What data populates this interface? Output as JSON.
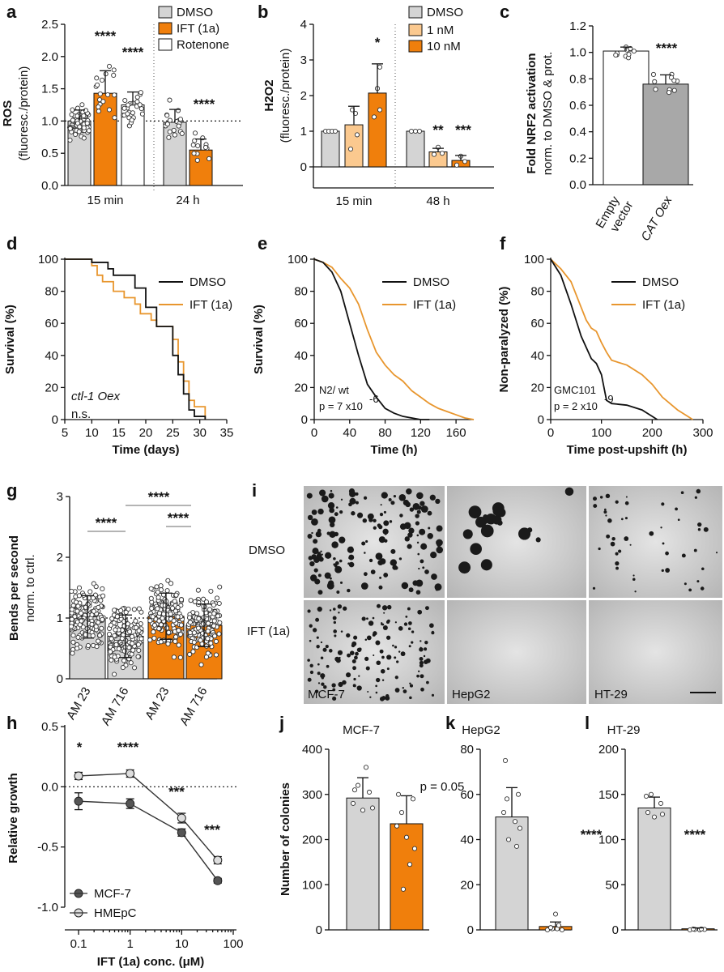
{
  "colors": {
    "grey": "#d4d4d4",
    "dark_grey": "#a8a8a8",
    "orange": "#f07f0c",
    "light_orange": "#fbc98f",
    "line_orange": "#e8962e",
    "black": "#000000"
  },
  "panels": {
    "a": {
      "label": "a",
      "ylabel": "ROS",
      "ylabel2": "(fluoresc./protein)",
      "legend": [
        "DMSO",
        "IFT (1a)",
        "Rotenone"
      ],
      "group_labels": [
        "15 min",
        "24 h"
      ],
      "yticks": [
        "0.0",
        "0.5",
        "1.0",
        "1.5",
        "2.0",
        "2.5"
      ],
      "sig": [
        "****",
        "****",
        "****"
      ]
    },
    "b": {
      "label": "b",
      "ylabel": "H2O2",
      "ylabel2": "(fluoresc./protein)",
      "legend": [
        "DMSO",
        "1 nM",
        "10 nM"
      ],
      "group_labels": [
        "15 min",
        "48 h"
      ],
      "yticks": [
        "0",
        "1",
        "2",
        "3",
        "4"
      ],
      "sig": [
        "*",
        "**",
        "***"
      ]
    },
    "c": {
      "label": "c",
      "ylabel": "Fold NRF2 activation",
      "ylabel2": "norm. to DMSO & prot.",
      "categories": [
        "Empty vector",
        "CAT Oex"
      ],
      "yticks": [
        "0.0",
        "0.2",
        "0.4",
        "0.6",
        "0.8",
        "1.0",
        "1.2"
      ],
      "sig": "****"
    },
    "d": {
      "label": "d",
      "ylabel": "Survival (%)",
      "xlabel": "Time (days)",
      "legend": [
        "DMSO",
        "IFT (1a)"
      ],
      "annotation": "ctl-1 Oex",
      "annotation2": "n.s.",
      "xticks": [
        "5",
        "10",
        "15",
        "20",
        "25",
        "30",
        "35"
      ],
      "yticks": [
        "0",
        "20",
        "40",
        "60",
        "80",
        "100"
      ]
    },
    "e": {
      "label": "e",
      "ylabel": "Survival (%)",
      "xlabel": "Time (h)",
      "legend": [
        "DMSO",
        "IFT (1a)"
      ],
      "annotation": "N2/ wt",
      "annotation2": "p = 7 x10",
      "annotation2_exp": "-6",
      "xticks": [
        "0",
        "40",
        "80",
        "120",
        "160"
      ],
      "yticks": [
        "0",
        "20",
        "40",
        "60",
        "80",
        "100"
      ]
    },
    "f": {
      "label": "f",
      "ylabel": "Non-paralyzed (%)",
      "xlabel": "Time post-upshift (h)",
      "legend": [
        "DMSO",
        "IFT (1a)"
      ],
      "annotation": "GMC101",
      "annotation2": "p = 2 x10",
      "annotation2_exp": "-9",
      "xticks": [
        "0",
        "100",
        "200",
        "300"
      ],
      "yticks": [
        "0",
        "20",
        "40",
        "60",
        "80",
        "100"
      ]
    },
    "g": {
      "label": "g",
      "ylabel": "Bends per second",
      "ylabel2": "norm. to ctrl.",
      "categories": [
        "AM 23",
        "AM 716",
        "AM 23",
        "AM 716"
      ],
      "yticks": [
        "0",
        "1",
        "2",
        "3"
      ],
      "sig": [
        "****",
        "****",
        "****"
      ]
    },
    "i": {
      "label": "i",
      "row_labels": [
        "DMSO",
        "IFT (1a)"
      ],
      "col_labels": [
        "MCF-7",
        "HepG2",
        "HT-29"
      ]
    },
    "h": {
      "label": "h",
      "ylabel": "Relative growth",
      "xlabel": "IFT (1a) conc. (μM)",
      "legend": [
        "MCF-7",
        "HMEpC"
      ],
      "xticks": [
        "0.1",
        "1",
        "10",
        "100"
      ],
      "yticks": [
        "0.5",
        "0.0",
        "-0.5",
        "-1.0"
      ],
      "sig": [
        "*",
        "****",
        "***",
        "***"
      ]
    },
    "j": {
      "label": "j",
      "title": "MCF-7",
      "ylabel": "Number of colonies",
      "annotation": "p = 0.05",
      "yticks": [
        "0",
        "100",
        "200",
        "300",
        "400"
      ]
    },
    "k": {
      "label": "k",
      "title": "HepG2",
      "sig": "****",
      "yticks": [
        "0",
        "20",
        "40",
        "60",
        "80"
      ]
    },
    "l": {
      "label": "l",
      "title": "HT-29",
      "sig": "****",
      "yticks": [
        "0",
        "50",
        "100",
        "150",
        "200"
      ]
    }
  },
  "chart_data": [
    {
      "panel": "a",
      "type": "bar",
      "ylim": [
        0,
        2.5
      ],
      "series": [
        {
          "name": "DMSO",
          "group": "15 min",
          "mean": 1.0,
          "sd": 0.17
        },
        {
          "name": "IFT (1a)",
          "group": "15 min",
          "mean": 1.43,
          "sd": 0.35
        },
        {
          "name": "Rotenone",
          "group": "15 min",
          "mean": 1.25,
          "sd": 0.2
        },
        {
          "name": "DMSO",
          "group": "24 h",
          "mean": 0.98,
          "sd": 0.2
        },
        {
          "name": "IFT (1a)",
          "group": "24 h",
          "mean": 0.55,
          "sd": 0.17
        }
      ]
    },
    {
      "panel": "b",
      "type": "bar",
      "ylim": [
        0,
        4
      ],
      "series": [
        {
          "name": "DMSO",
          "group": "15 min",
          "mean": 1.0,
          "sd": 0.0
        },
        {
          "name": "1 nM",
          "group": "15 min",
          "mean": 1.18,
          "sd": 0.52
        },
        {
          "name": "10 nM",
          "group": "15 min",
          "mean": 2.07,
          "sd": 0.82
        },
        {
          "name": "DMSO",
          "group": "48 h",
          "mean": 1.0,
          "sd": 0.0
        },
        {
          "name": "1 nM",
          "group": "48 h",
          "mean": 0.42,
          "sd": 0.1
        },
        {
          "name": "10 nM",
          "group": "48 h",
          "mean": 0.18,
          "sd": 0.14
        }
      ]
    },
    {
      "panel": "c",
      "type": "bar",
      "ylim": [
        0,
        1.2
      ],
      "categories": [
        "Empty vector",
        "CAT Oex"
      ],
      "values": [
        1.01,
        0.76
      ],
      "sd": [
        0.03,
        0.07
      ]
    },
    {
      "panel": "d",
      "type": "line",
      "xlim": [
        5,
        35
      ],
      "ylim": [
        0,
        100
      ],
      "series": [
        {
          "name": "DMSO",
          "x": [
            5,
            8,
            10,
            11,
            12,
            13,
            14,
            16,
            18,
            19,
            20,
            21,
            22,
            24,
            25,
            26,
            27,
            28,
            29,
            30,
            31
          ],
          "y": [
            100,
            100,
            98,
            98,
            98,
            94,
            90,
            90,
            82,
            82,
            70,
            70,
            58,
            58,
            40,
            28,
            16,
            6,
            2,
            2,
            0
          ]
        },
        {
          "name": "IFT (1a)",
          "x": [
            5,
            8,
            10,
            11,
            12,
            13,
            14,
            16,
            18,
            19,
            20,
            21,
            22,
            24,
            25,
            26,
            27,
            28,
            29,
            30,
            31
          ],
          "y": [
            100,
            100,
            96,
            90,
            86,
            86,
            80,
            76,
            72,
            66,
            66,
            62,
            58,
            58,
            50,
            36,
            24,
            12,
            8,
            8,
            0
          ]
        }
      ]
    },
    {
      "panel": "e",
      "type": "line",
      "xlim": [
        0,
        180
      ],
      "ylim": [
        0,
        100
      ],
      "series": [
        {
          "name": "DMSO",
          "x": [
            0,
            10,
            20,
            30,
            40,
            50,
            60,
            70,
            80,
            90,
            100,
            110,
            120,
            130
          ],
          "y": [
            100,
            98,
            92,
            80,
            60,
            40,
            22,
            14,
            7,
            4,
            2,
            1,
            0,
            0
          ]
        },
        {
          "name": "IFT (1a)",
          "x": [
            0,
            10,
            20,
            30,
            40,
            50,
            60,
            70,
            80,
            90,
            100,
            110,
            120,
            130,
            140,
            150,
            160,
            170,
            180
          ],
          "y": [
            100,
            98,
            95,
            88,
            82,
            72,
            56,
            42,
            34,
            28,
            24,
            18,
            14,
            10,
            7,
            5,
            3,
            1,
            0
          ]
        }
      ]
    },
    {
      "panel": "f",
      "type": "line",
      "xlim": [
        0,
        300
      ],
      "ylim": [
        0,
        100
      ],
      "series": [
        {
          "name": "DMSO",
          "x": [
            0,
            20,
            40,
            50,
            60,
            70,
            80,
            90,
            100,
            110,
            120,
            150,
            180,
            200,
            210
          ],
          "y": [
            100,
            90,
            72,
            62,
            52,
            45,
            38,
            35,
            28,
            12,
            10,
            9,
            6,
            2,
            0
          ]
        },
        {
          "name": "IFT (1a)",
          "x": [
            0,
            20,
            40,
            50,
            60,
            70,
            80,
            90,
            100,
            110,
            120,
            150,
            180,
            200,
            220,
            250,
            270,
            280
          ],
          "y": [
            100,
            94,
            86,
            78,
            70,
            62,
            57,
            55,
            48,
            42,
            37,
            34,
            28,
            22,
            14,
            6,
            2,
            0
          ]
        }
      ]
    },
    {
      "panel": "g",
      "type": "bar",
      "ylim": [
        0,
        3
      ],
      "categories": [
        "AM 23",
        "AM 716",
        "AM 23",
        "AM 716"
      ],
      "values": [
        1.02,
        0.7,
        1.03,
        0.88
      ],
      "sd": [
        0.35,
        0.35,
        0.38,
        0.35
      ]
    },
    {
      "panel": "h",
      "type": "line",
      "xscale": "log",
      "xlim": [
        0.1,
        100
      ],
      "ylim": [
        -1.0,
        0.5
      ],
      "series": [
        {
          "name": "MCF-7",
          "x": [
            0.1,
            1,
            10,
            50
          ],
          "y": [
            -0.12,
            -0.14,
            -0.38,
            -0.78
          ],
          "sd": [
            0.07,
            0.04,
            0.03,
            0.02
          ]
        },
        {
          "name": "HMEpC",
          "x": [
            0.1,
            1,
            10,
            50
          ],
          "y": [
            0.09,
            0.11,
            -0.26,
            -0.61
          ],
          "sd": [
            0.03,
            0.03,
            0.04,
            0.03
          ]
        }
      ]
    },
    {
      "panel": "j",
      "type": "bar",
      "ylim": [
        0,
        400
      ],
      "categories": [
        "DMSO",
        "IFT (1a)"
      ],
      "values": [
        292,
        235
      ],
      "sd": [
        45,
        62
      ]
    },
    {
      "panel": "k",
      "type": "bar",
      "ylim": [
        0,
        80
      ],
      "categories": [
        "DMSO",
        "IFT (1a)"
      ],
      "values": [
        50,
        1.5
      ],
      "sd": [
        13,
        2
      ]
    },
    {
      "panel": "l",
      "type": "bar",
      "ylim": [
        0,
        200
      ],
      "categories": [
        "DMSO",
        "IFT (1a)"
      ],
      "values": [
        135,
        1.2
      ],
      "sd": [
        12,
        1
      ]
    }
  ]
}
